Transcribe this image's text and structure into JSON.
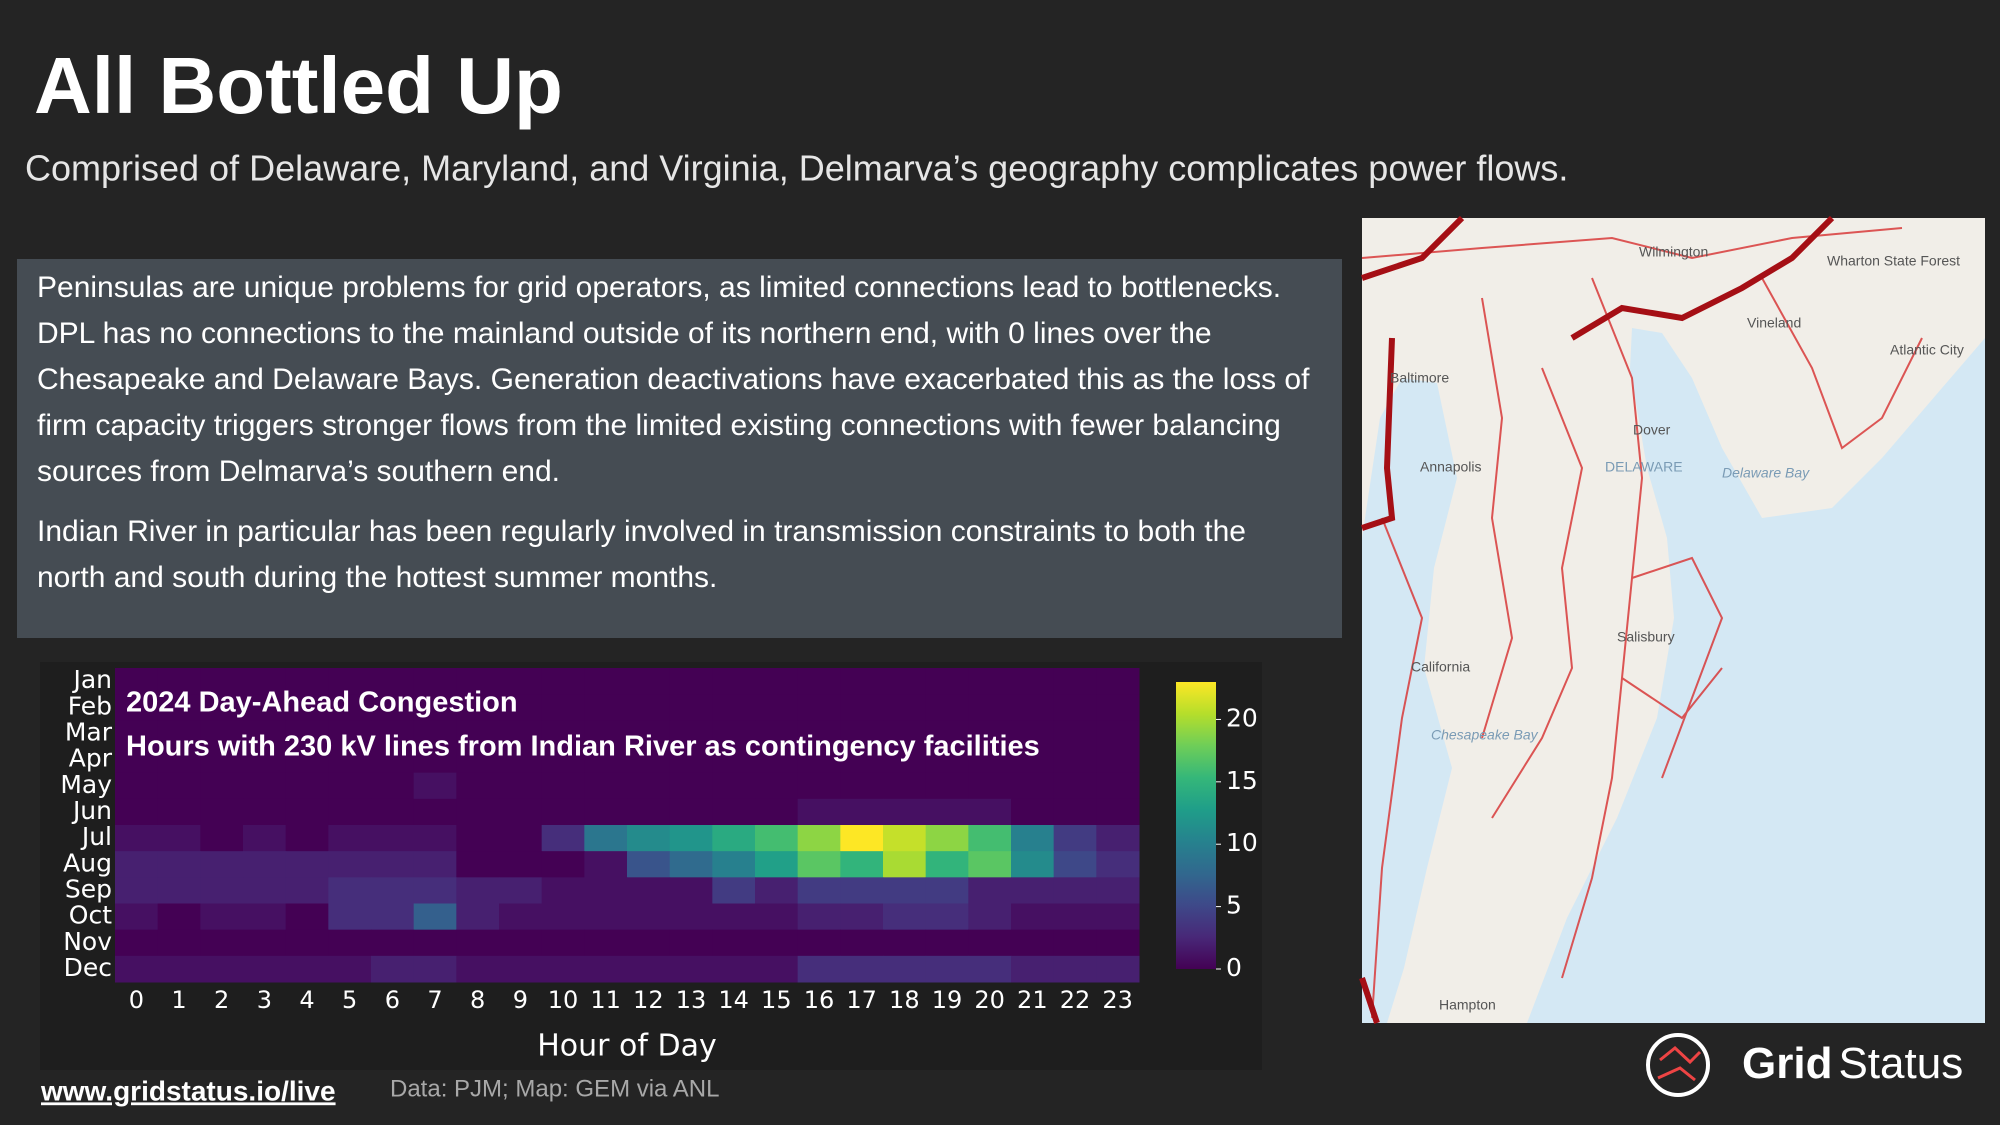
{
  "header": {
    "title": "All Bottled Up",
    "subtitle": "Comprised of Delaware, Maryland, and Virginia, Delmarva’s geography complicates power flows."
  },
  "body": {
    "paragraphs": [
      "Peninsulas are unique problems for grid operators, as limited connections lead to bottlenecks. DPL has no connections to the mainland outside of its northern end, with 0 lines over the Chesapeake and Delaware Bays. Generation deactivations have exacerbated this as the loss of firm capacity triggers stronger flows from the limited existing connections with fewer balancing sources from Delmarva’s southern end.",
      "Indian River in particular has been regularly involved in transmission constraints to both the north and south during the hottest summer months."
    ]
  },
  "chart_data": {
    "type": "heatmap",
    "title": "2024 Day-Ahead Congestion",
    "subtitle": "Hours with 230 kV lines from Indian River as contingency facilities",
    "x_label": "Hour of Day",
    "x": [
      0,
      1,
      2,
      3,
      4,
      5,
      6,
      7,
      8,
      9,
      10,
      11,
      12,
      13,
      14,
      15,
      16,
      17,
      18,
      19,
      20,
      21,
      22,
      23
    ],
    "categories": [
      "Jan",
      "Feb",
      "Mar",
      "Apr",
      "May",
      "Jun",
      "Jul",
      "Aug",
      "Sep",
      "Oct",
      "Nov",
      "Dec"
    ],
    "values": [
      [
        0,
        0,
        0,
        0,
        0,
        0,
        0,
        0,
        0,
        0,
        0,
        0,
        0,
        0,
        0,
        0,
        0,
        0,
        0,
        0,
        0,
        0,
        0,
        0
      ],
      [
        0,
        0,
        0,
        0,
        0,
        0,
        0,
        0,
        0,
        0,
        0,
        0,
        0,
        0,
        0,
        0,
        0,
        0,
        0,
        0,
        0,
        0,
        0,
        0
      ],
      [
        0,
        0,
        0,
        0,
        0,
        0,
        0,
        0,
        0,
        0,
        0,
        0,
        0,
        0,
        0,
        0,
        0,
        0,
        0,
        0,
        0,
        0,
        0,
        0
      ],
      [
        0,
        0,
        0,
        0,
        0,
        0,
        0,
        0,
        0,
        0,
        0,
        0,
        0,
        0,
        0,
        0,
        0,
        0,
        0,
        0,
        0,
        0,
        0,
        0
      ],
      [
        0,
        0,
        0,
        0,
        0,
        0,
        0,
        1,
        0,
        0,
        0,
        0,
        0,
        0,
        0,
        0,
        0,
        0,
        0,
        0,
        0,
        0,
        0,
        0
      ],
      [
        0,
        0,
        0,
        0,
        0,
        0,
        0,
        0,
        0,
        0,
        0,
        0,
        0,
        0,
        0,
        0,
        1,
        1,
        1,
        1,
        1,
        0,
        0,
        0
      ],
      [
        1,
        1,
        0,
        1,
        0,
        1,
        1,
        1,
        0,
        0,
        3,
        9,
        11,
        12,
        14,
        16,
        19,
        23,
        21,
        19,
        16,
        10,
        4,
        2
      ],
      [
        2,
        2,
        2,
        2,
        2,
        2,
        2,
        2,
        0,
        0,
        0,
        1,
        6,
        8,
        10,
        13,
        17,
        15,
        20,
        15,
        17,
        11,
        5,
        3
      ],
      [
        2,
        2,
        2,
        2,
        2,
        3,
        3,
        3,
        2,
        2,
        1,
        1,
        1,
        1,
        4,
        2,
        4,
        4,
        4,
        4,
        2,
        2,
        2,
        2
      ],
      [
        1,
        0,
        1,
        1,
        0,
        3,
        3,
        7,
        2,
        1,
        1,
        1,
        1,
        1,
        1,
        1,
        2,
        2,
        3,
        3,
        2,
        1,
        1,
        1
      ],
      [
        0,
        0,
        0,
        0,
        0,
        0,
        0,
        0,
        0,
        0,
        0,
        0,
        0,
        0,
        0,
        0,
        0,
        0,
        0,
        0,
        0,
        0,
        0,
        0
      ],
      [
        1,
        1,
        1,
        1,
        1,
        1,
        2,
        2,
        1,
        1,
        1,
        1,
        1,
        1,
        1,
        1,
        3,
        3,
        3,
        3,
        3,
        2,
        2,
        2
      ]
    ],
    "colorscale": "viridis",
    "zlim": [
      0,
      23
    ],
    "zticks": [
      0,
      5,
      10,
      15,
      20
    ]
  },
  "map": {
    "labels": [
      "Wilmington",
      "Wharton State Forest",
      "Vineland",
      "Atlantic City",
      "Baltimore",
      "Dover",
      "Annapolis",
      "DELAWARE",
      "Delaware Bay",
      "Salisbury",
      "California",
      "Chesapeake Bay",
      "Hampton"
    ]
  },
  "footer": {
    "link": "www.gridstatus.io/live",
    "source": "Data: PJM; Map: GEM via ANL",
    "logo_bold": "Grid",
    "logo_light": "Status"
  }
}
